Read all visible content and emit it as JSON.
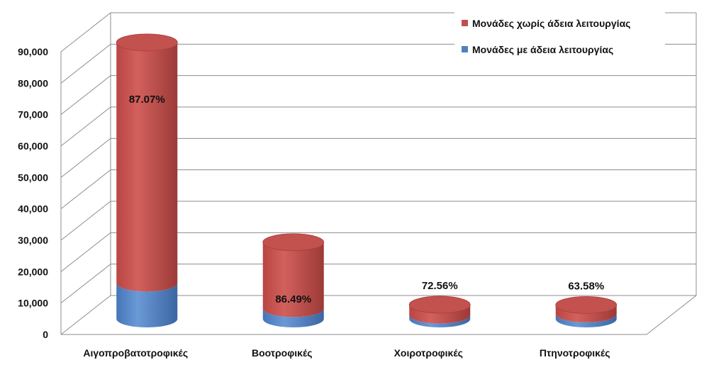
{
  "chart_data": {
    "type": "bar",
    "style": "3d-stacked-cylinder",
    "categories": [
      "Αιγοπροβατοτροφικές",
      "Βοοτροφικές",
      "Χοιροτροφικές",
      "Πτηνοτροφικές"
    ],
    "series": [
      {
        "name": "Μονάδες με άδεια λειτουργίας",
        "color": "#4f81bd",
        "values": [
          11400,
          3300,
          1240,
          1610
        ]
      },
      {
        "name": "Μονάδες χωρίς άδεια λειτουργίας",
        "color": "#c0504d",
        "values": [
          76600,
          21100,
          3280,
          2810
        ]
      }
    ],
    "data_labels": [
      "87.07%",
      "86.49%",
      "72.56%",
      "63.58%"
    ],
    "ylim": [
      0,
      90000
    ],
    "yticks": [
      "0",
      "10,000",
      "20,000",
      "30,000",
      "40,000",
      "50,000",
      "60,000",
      "70,000",
      "80,000",
      "90,000"
    ],
    "grid": true,
    "legend_position": "top-right"
  }
}
